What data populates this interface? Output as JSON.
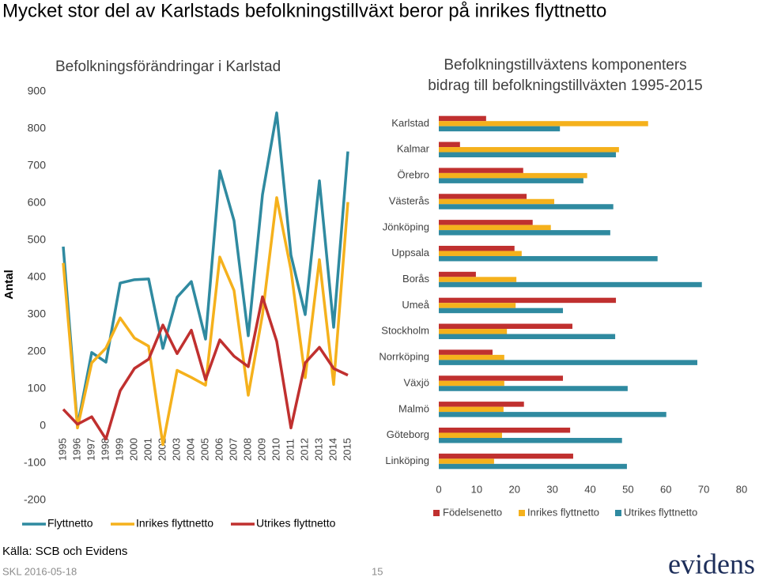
{
  "title": "Mycket stor del av Karlstads befolkningstillväxt beror på inrikes flyttnetto",
  "chart_data": [
    {
      "type": "line",
      "title": "Befolkningsförändringar i Karlstad",
      "y_label": "Antal",
      "categories": [
        "1995",
        "1996",
        "1997",
        "1998",
        "1999",
        "2000",
        "2001",
        "2002",
        "2003",
        "2004",
        "2005",
        "2006",
        "2007",
        "2008",
        "2009",
        "2010",
        "2011",
        "2012",
        "2013",
        "2014",
        "2015"
      ],
      "series": [
        {
          "name": "Flyttnetto",
          "color": "#2f8aa0",
          "values": [
            483,
            0,
            198,
            172,
            385,
            394,
            396,
            209,
            347,
            389,
            234,
            687,
            553,
            243,
            623,
            843,
            460,
            300,
            660,
            266,
            739
          ]
        },
        {
          "name": "Inrikes flyttnetto",
          "color": "#f5b11c",
          "values": [
            439,
            -5,
            170,
            210,
            291,
            237,
            215,
            -50,
            150,
            131,
            110,
            455,
            365,
            83,
            300,
            615,
            420,
            130,
            448,
            112,
            603
          ]
        },
        {
          "name": "Utrikes flyttnetto",
          "color": "#c0302f",
          "values": [
            45,
            5,
            25,
            -35,
            95,
            155,
            180,
            272,
            195,
            258,
            125,
            232,
            188,
            160,
            348,
            228,
            -5,
            170,
            212,
            155,
            137
          ]
        }
      ],
      "ylim": [
        -200,
        900
      ],
      "yticks": [
        -200,
        -100,
        0,
        100,
        200,
        300,
        400,
        500,
        600,
        700,
        800,
        900
      ],
      "grid": false
    },
    {
      "type": "bar",
      "horizontal": true,
      "title": [
        "Befolkningstillväxtens komponenters",
        "bidrag till befolkningstillväxten 1995-2015"
      ],
      "categories": [
        "Karlstad",
        "Kalmar",
        "Örebro",
        "Västerås",
        "Jönköping",
        "Uppsala",
        "Borås",
        "Umeå",
        "Stockholm",
        "Norrköping",
        "Växjö",
        "Malmö",
        "Göteborg",
        "Linköping"
      ],
      "series": [
        {
          "name": "Födelsenetto",
          "color": "#c0302f",
          "values": [
            12.5,
            5.6,
            22.3,
            23.2,
            24.8,
            20,
            9.8,
            46.8,
            35.3,
            14.2,
            32.8,
            22.5,
            34.7,
            35.5
          ]
        },
        {
          "name": "Inrikes flyttnetto",
          "color": "#f5b11c",
          "values": [
            55.3,
            47.6,
            39.2,
            30.5,
            29.6,
            21.9,
            20.5,
            20.3,
            18,
            17.3,
            17.3,
            17.1,
            16.7,
            14.6
          ]
        },
        {
          "name": "Utrikes flyttnetto",
          "color": "#2f8aa0",
          "values": [
            32,
            46.8,
            38.2,
            46.1,
            45.3,
            57.8,
            69.5,
            32.8,
            46.6,
            68.3,
            49.9,
            60.1,
            48.4,
            49.7
          ]
        }
      ],
      "xlim": [
        0,
        80
      ],
      "xticks": [
        0,
        10,
        20,
        30,
        40,
        50,
        60,
        70,
        80
      ],
      "grid": false
    }
  ],
  "source": "Källa: SCB och Evidens",
  "date": "SKL 2016-05-18",
  "page": "15",
  "logo": "evidens"
}
